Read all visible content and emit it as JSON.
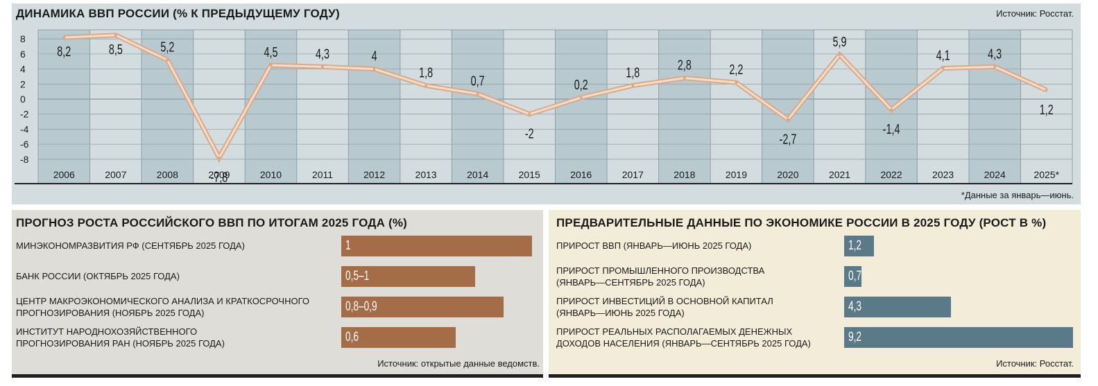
{
  "top": {
    "title": "ДИНАМИКА ВВП РОССИИ (% К ПРЕДЫДУЩЕМУ ГОДУ)",
    "source": "Источник: Росстат.",
    "footnote": "*Данные за январь—июнь."
  },
  "chart_data": {
    "type": "line",
    "title": "ДИНАМИКА ВВП РОССИИ (% К ПРЕДЫДУЩЕМУ ГОДУ)",
    "xlabel": "",
    "ylabel": "",
    "categories": [
      "2006",
      "2007",
      "2008",
      "2009",
      "2010",
      "2011",
      "2012",
      "2013",
      "2014",
      "2015",
      "2016",
      "2017",
      "2018",
      "2019",
      "2020",
      "2021",
      "2022",
      "2023",
      "2024",
      "2025*"
    ],
    "values": [
      8.2,
      8.5,
      5.2,
      -7.8,
      4.5,
      4.3,
      4,
      1.8,
      0.7,
      -2,
      0.2,
      1.8,
      2.8,
      2.2,
      -2.7,
      5.9,
      -1.4,
      4.1,
      4.3,
      1.2
    ],
    "value_labels": [
      "8,2",
      "8,5",
      "5,2",
      "-7,8",
      "4,5",
      "4,3",
      "4",
      "1,8",
      "0,7",
      "-2",
      "0,2",
      "1,8",
      "2,8",
      "2,2",
      "-2,7",
      "5,9",
      "-1,4",
      "4,1",
      "4,3",
      "1,2"
    ],
    "y_ticks": [
      "8",
      "6",
      "4",
      "2",
      "0",
      "-2",
      "-4",
      "-6",
      "-8"
    ],
    "y_tick_values": [
      8,
      6,
      4,
      2,
      0,
      -2,
      -4,
      -6,
      -8
    ],
    "ylim": [
      -9,
      9
    ],
    "grid": true,
    "colors": {
      "line_outer": "#d9a98a",
      "line_inner": "#f3ddc8",
      "col_dark": "#b8c9cf",
      "col_light": "#d3dde0"
    }
  },
  "left": {
    "title": "ПРОГНОЗ РОСТА РОССИЙСКОГО ВВП ПО ИТОГАМ 2025 ГОДА (%)",
    "source": "Источник: открытые данные ведомств.",
    "max_value": 1,
    "rows": [
      {
        "label_lines": [
          "МИНЭКОНОМРАЗВИТИЯ РФ (СЕНТЯБРЬ 2025 ГОДА)"
        ],
        "value_text": "1",
        "value": 1
      },
      {
        "label_lines": [
          "БАНК РОССИИ (ОКТЯБРЬ 2025  ГОДА)"
        ],
        "value_text": "0,5–1",
        "value": 0.7
      },
      {
        "label_lines": [
          "ЦЕНТР МАКРОЭКОНОМИЧЕСКОГО АНАЛИЗА И КРАТКОСРОЧНОГО",
          "ПРОГНОЗИРОВАНИЯ (НОЯБРЬ 2025 ГОДА)"
        ],
        "value_text": "0,8–0,9",
        "value": 0.85
      },
      {
        "label_lines": [
          "ИНСТИТУТ НАРОДНОХОЗЯЙСТВЕННОГО",
          "ПРОГНОЗИРОВАНИЯ РАН  (НОЯБРЬ 2025 ГОДА)"
        ],
        "value_text": "0,6",
        "value": 0.6
      }
    ],
    "colors": {
      "bar": "#a56c48"
    }
  },
  "right": {
    "title": "ПРЕДВАРИТЕЛЬНЫЕ ДАННЫЕ ПО ЭКОНОМИКЕ РОССИИ В 2025 ГОДУ (РОСТ В %)",
    "source": "Источник: Росстат.",
    "max_value": 9.2,
    "rows": [
      {
        "label_lines": [
          "ПРИРОСТ ВВП (ЯНВАРЬ—ИЮНЬ 2025 ГОДА)"
        ],
        "value_text": "1,2",
        "value": 1.2
      },
      {
        "label_lines": [
          "ПРИРОСТ ПРОМЫШЛЕННОГО ПРОИЗВОДСТВА",
          "(ЯНВАРЬ—СЕНТЯБРЬ 2025 ГОДА)"
        ],
        "value_text": "0,7",
        "value": 0.7
      },
      {
        "label_lines": [
          "ПРИРОСТ ИНВЕСТИЦИЙ В ОСНОВНОЙ КАПИТАЛ",
          "(ЯНВАРЬ—ИЮНЬ 2025 ГОДА)"
        ],
        "value_text": "4,3",
        "value": 4.3
      },
      {
        "label_lines": [
          "ПРИРОСТ РЕАЛЬНЫХ РАСПОЛАГАЕМЫХ ДЕНЕЖНЫХ",
          "ДОХОДОВ НАСЕЛЕНИЯ (ЯНВАРЬ—СЕНТЯБРЬ 2025 ГОДА)"
        ],
        "value_text": "9,2",
        "value": 9.2
      }
    ],
    "colors": {
      "bar": "#5a7989"
    }
  }
}
